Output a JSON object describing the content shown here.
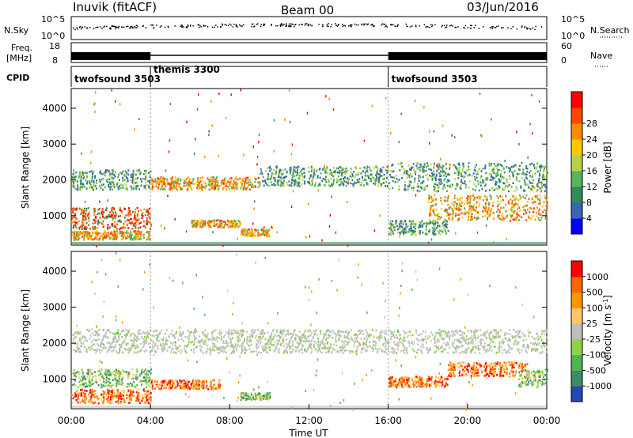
{
  "header": {
    "station": "Inuvik (fitACF)",
    "beam": "Beam 00",
    "date": "03/Jun/2016"
  },
  "sky_panel": {
    "left_label": "N.Sky",
    "left_top": "10^5",
    "left_bottom": "10^0",
    "right_top": "10^5",
    "right_bottom": "10^0",
    "right_label": "N.Search"
  },
  "freq_panel": {
    "left_label_1": "Freq.",
    "left_label_2": "[MHz]",
    "left_top": "18",
    "left_bottom": "8",
    "right_top": "60",
    "right_bottom": "0",
    "right_label": "Nave"
  },
  "cpid": {
    "label": "CPID",
    "modes": [
      {
        "name": "twofsound 3503",
        "start": 0,
        "end": 4
      },
      {
        "name": "themis 3300",
        "start": 4,
        "end": 16
      },
      {
        "name": "twofsound 3503",
        "start": 16,
        "end": 24
      }
    ]
  },
  "chart_data": [
    {
      "type": "heatmap",
      "quantity": "Power",
      "ylabel": "Slant Range [km]",
      "yticks": [
        "1000",
        "2000",
        "3000",
        "4000"
      ],
      "ylim": [
        180,
        4550
      ],
      "xlim": [
        0,
        24
      ],
      "colorbar": {
        "label": "Power [dB]",
        "ticks": [
          "4",
          "8",
          "12",
          "16",
          "20",
          "24",
          "28"
        ],
        "colors": [
          "#0000ff",
          "#3c64b4",
          "#2f8c5a",
          "#5ab45a",
          "#b4d24b",
          "#ffc800",
          "#ff8c00",
          "#ff4600",
          "#ff0000"
        ]
      },
      "bands": [
        {
          "t0": 0.0,
          "t1": 4.0,
          "r0": 1750,
          "r1": 2300,
          "value": "green"
        },
        {
          "t0": 0.0,
          "t1": 4.0,
          "r0": 650,
          "r1": 1250,
          "value": "red"
        },
        {
          "t0": 0.0,
          "t1": 4.0,
          "r0": 350,
          "r1": 600,
          "value": "orange"
        },
        {
          "t0": 4.0,
          "t1": 9.5,
          "r0": 1750,
          "r1": 2100,
          "value": "orange"
        },
        {
          "t0": 6.0,
          "t1": 8.5,
          "r0": 700,
          "r1": 900,
          "value": "orange"
        },
        {
          "t0": 8.5,
          "t1": 10.0,
          "r0": 450,
          "r1": 650,
          "value": "orange"
        },
        {
          "t0": 9.5,
          "t1": 16.0,
          "r0": 1850,
          "r1": 2400,
          "value": "green"
        },
        {
          "t0": 16.0,
          "t1": 24.0,
          "r0": 1700,
          "r1": 2500,
          "value": "green"
        },
        {
          "t0": 18.0,
          "t1": 24.0,
          "r0": 900,
          "r1": 1600,
          "value": "orange"
        },
        {
          "t0": 16.0,
          "t1": 19.0,
          "r0": 500,
          "r1": 900,
          "value": "green"
        }
      ]
    },
    {
      "type": "heatmap",
      "quantity": "Velocity",
      "ylabel": "Slant Range [km]",
      "yticks": [
        "1000",
        "2000",
        "3000",
        "4000"
      ],
      "ylim": [
        180,
        4550
      ],
      "xlim": [
        0,
        24
      ],
      "xlabel": "Time UT",
      "xticks": [
        "00:00",
        "04:00",
        "08:00",
        "12:00",
        "16:00",
        "20:00",
        "00:00"
      ],
      "colorbar": {
        "label": "Velocity [m s",
        "label_sup": "-1",
        "label_end": "]",
        "ticks": [
          "1000",
          "500",
          "100",
          "25",
          "-25",
          "-100",
          "-500",
          "-1000"
        ],
        "colors": [
          "#2846b4",
          "#3c8c64",
          "#50b450",
          "#8cd24b",
          "#bebebe",
          "#ffc864",
          "#ff9600",
          "#ff6400",
          "#ff0000"
        ]
      },
      "bands": [
        {
          "t0": 0.0,
          "t1": 24.0,
          "r0": 1750,
          "r1": 2400,
          "value": "gray"
        },
        {
          "t0": 0.0,
          "t1": 4.0,
          "r0": 800,
          "r1": 1300,
          "value": "green"
        },
        {
          "t0": 0.0,
          "t1": 4.0,
          "r0": 350,
          "r1": 750,
          "value": "orange"
        },
        {
          "t0": 4.0,
          "t1": 7.5,
          "r0": 750,
          "r1": 1000,
          "value": "orange"
        },
        {
          "t0": 8.5,
          "t1": 10.0,
          "r0": 450,
          "r1": 650,
          "value": "green"
        },
        {
          "t0": 16.0,
          "t1": 19.0,
          "r0": 800,
          "r1": 1100,
          "value": "orange"
        },
        {
          "t0": 19.0,
          "t1": 23.0,
          "r0": 1100,
          "r1": 1500,
          "value": "orange"
        },
        {
          "t0": 22.5,
          "t1": 24.0,
          "r0": 800,
          "r1": 1300,
          "value": "green"
        }
      ]
    }
  ]
}
